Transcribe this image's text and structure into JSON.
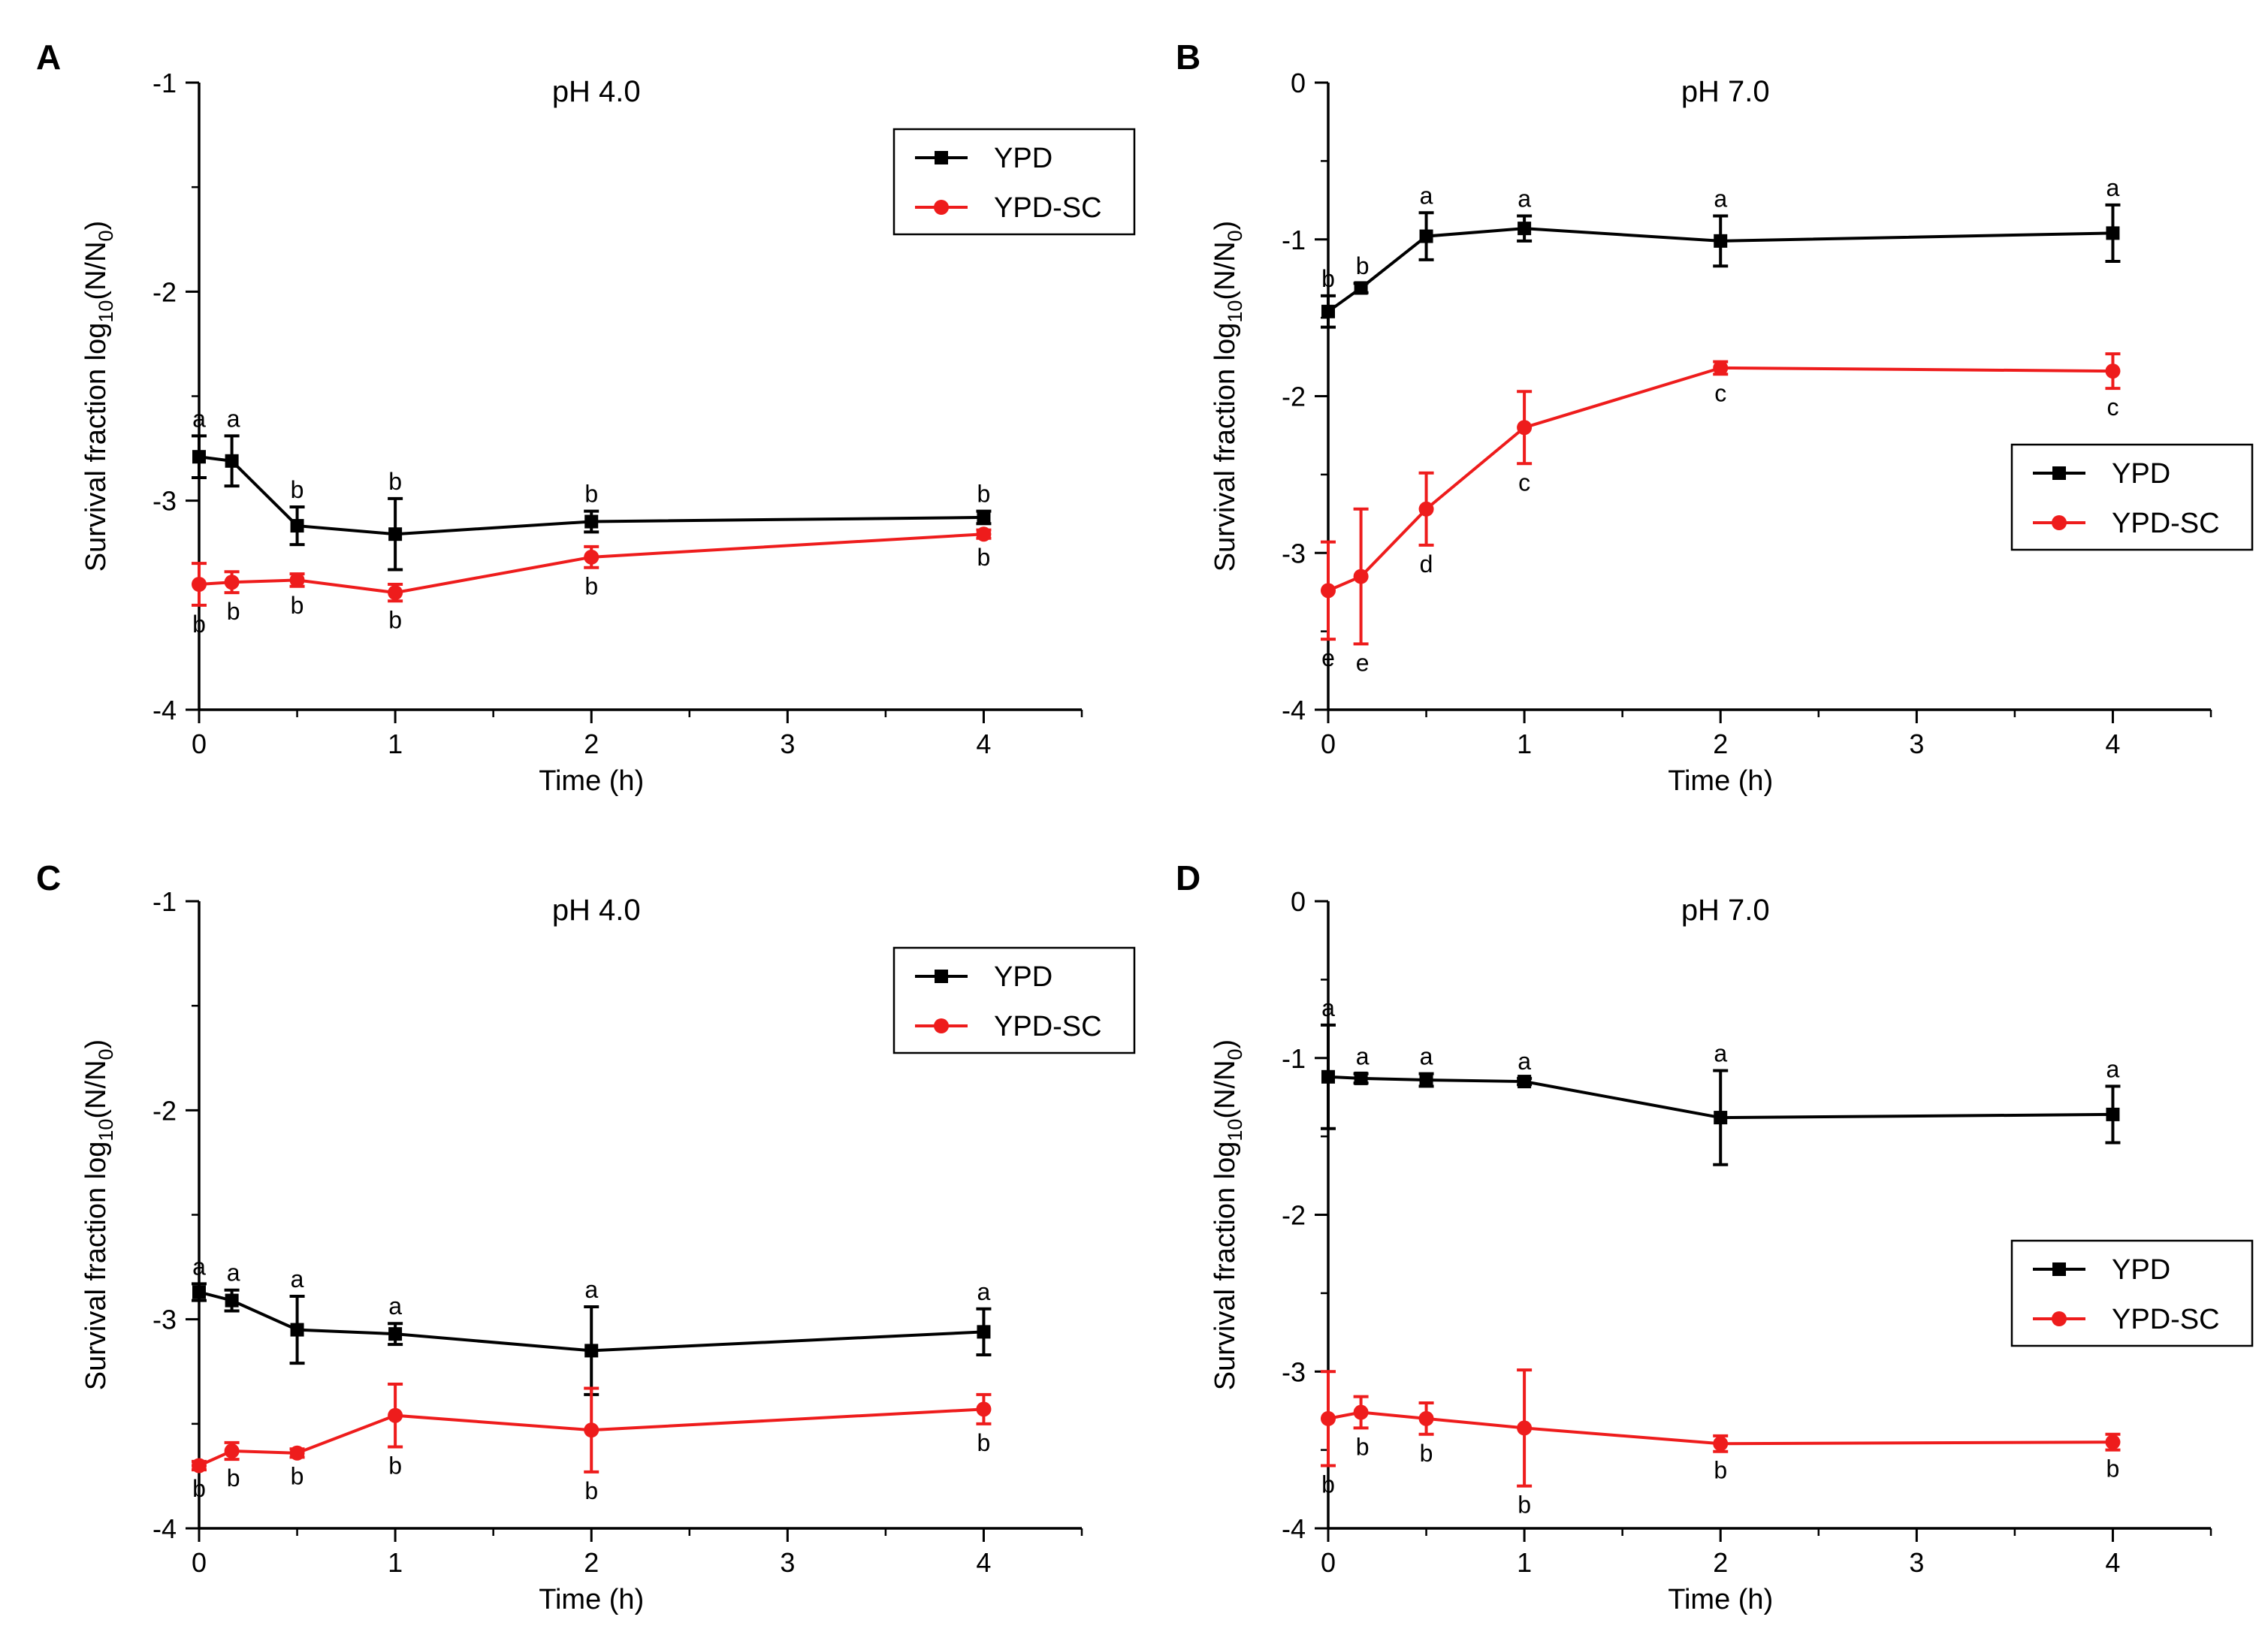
{
  "figure": {
    "x_label": "Time (h)",
    "y_label_main": "Survival fraction log",
    "y_label_sub": "10",
    "y_label_tail": "(N/N",
    "y_label_sub0": "0",
    "y_label_close": ")"
  },
  "colors": {
    "ypd": "#000000",
    "ypd_sc": "#ee1c1c",
    "axis": "#000000"
  },
  "chart_data": [
    {
      "type": "line",
      "panel": "A",
      "title": "pH 4.0",
      "xlabel": "Time (h)",
      "ylabel": "Survival fraction log10(N/N0)",
      "xlim": [
        0,
        4.5
      ],
      "ylim": [
        -4,
        -1
      ],
      "xticks": [
        0,
        1,
        2,
        3,
        4
      ],
      "yticks": [
        -4,
        -3,
        -2,
        -1
      ],
      "legend_position": "top-right",
      "x": [
        0,
        0.167,
        0.5,
        1,
        2,
        4
      ],
      "series": [
        {
          "name": "YPD",
          "marker": "square",
          "color": "#000000",
          "values": [
            -2.79,
            -2.81,
            -3.12,
            -3.16,
            -3.1,
            -3.08
          ],
          "errors": [
            0.1,
            0.12,
            0.09,
            0.17,
            0.05,
            0.03
          ],
          "letters": [
            "a",
            "a",
            "b",
            "b",
            "b",
            "b"
          ],
          "letter_pos": "above"
        },
        {
          "name": "YPD-SC",
          "marker": "circle",
          "color": "#ee1c1c",
          "values": [
            -3.4,
            -3.39,
            -3.38,
            -3.44,
            -3.27,
            -3.16
          ],
          "errors": [
            0.1,
            0.05,
            0.03,
            0.04,
            0.05,
            0.02
          ],
          "letters": [
            "b",
            "b",
            "b",
            "b",
            "b",
            "b"
          ],
          "letter_pos": "below"
        }
      ]
    },
    {
      "type": "line",
      "panel": "B",
      "title": "pH 7.0",
      "xlabel": "Time (h)",
      "ylabel": "Survival fraction log10(N/N0)",
      "xlim": [
        0,
        4.5
      ],
      "ylim": [
        -4,
        0
      ],
      "xticks": [
        0,
        1,
        2,
        3,
        4
      ],
      "yticks": [
        -4,
        -3,
        -2,
        -1,
        0
      ],
      "legend_position": "right",
      "x": [
        0,
        0.167,
        0.5,
        1,
        2,
        4
      ],
      "series": [
        {
          "name": "YPD",
          "marker": "square",
          "color": "#000000",
          "values": [
            -1.46,
            -1.31,
            -0.98,
            -0.93,
            -1.01,
            -0.96
          ],
          "errors": [
            0.1,
            0.03,
            0.15,
            0.08,
            0.16,
            0.18
          ],
          "letters": [
            "b",
            "b",
            "a",
            "a",
            "a",
            "a"
          ],
          "letter_pos": "above"
        },
        {
          "name": "YPD-SC",
          "marker": "circle",
          "color": "#ee1c1c",
          "values": [
            -3.24,
            -3.15,
            -2.72,
            -2.2,
            -1.82,
            -1.84
          ],
          "errors": [
            0.31,
            0.43,
            0.23,
            0.23,
            0.04,
            0.11
          ],
          "letters": [
            "e",
            "e",
            "d",
            "c",
            "c",
            "c"
          ],
          "letter_pos": "below"
        }
      ]
    },
    {
      "type": "line",
      "panel": "C",
      "title": "pH 4.0",
      "xlabel": "Time (h)",
      "ylabel": "Survival fraction log10(N/N0)",
      "xlim": [
        0,
        4.5
      ],
      "ylim": [
        -4,
        -1
      ],
      "xticks": [
        0,
        1,
        2,
        3,
        4
      ],
      "yticks": [
        -4,
        -3,
        -2,
        -1
      ],
      "legend_position": "top-right",
      "x": [
        0,
        0.167,
        0.5,
        1,
        2,
        4
      ],
      "series": [
        {
          "name": "YPD",
          "marker": "square",
          "color": "#000000",
          "values": [
            -2.87,
            -2.91,
            -3.05,
            -3.07,
            -3.15,
            -3.06
          ],
          "errors": [
            0.04,
            0.05,
            0.16,
            0.05,
            0.21,
            0.11
          ],
          "letters": [
            "a",
            "a",
            "a",
            "a",
            "a",
            "a"
          ],
          "letter_pos": "above"
        },
        {
          "name": "YPD-SC",
          "marker": "circle",
          "color": "#ee1c1c",
          "values": [
            -3.7,
            -3.63,
            -3.64,
            -3.46,
            -3.53,
            -3.43
          ],
          "errors": [
            0.02,
            0.04,
            0.02,
            0.15,
            0.2,
            0.07
          ],
          "letters": [
            "b",
            "b",
            "b",
            "b",
            "b",
            "b"
          ],
          "letter_pos": "below"
        }
      ]
    },
    {
      "type": "line",
      "panel": "D",
      "title": "pH 7.0",
      "xlabel": "Time (h)",
      "ylabel": "Survival fraction log10(N/N0)",
      "xlim": [
        0,
        4.5
      ],
      "ylim": [
        -4,
        0
      ],
      "xticks": [
        0,
        1,
        2,
        3,
        4
      ],
      "yticks": [
        -4,
        -3,
        -2,
        -1,
        0
      ],
      "legend_position": "right",
      "x": [
        0,
        0.167,
        0.5,
        1,
        2,
        4
      ],
      "series": [
        {
          "name": "YPD",
          "marker": "square",
          "color": "#000000",
          "values": [
            -1.12,
            -1.13,
            -1.14,
            -1.15,
            -1.38,
            -1.36
          ],
          "errors": [
            0.33,
            0.03,
            0.04,
            0.02,
            0.3,
            0.18
          ],
          "letters": [
            "a",
            "a",
            "a",
            "a",
            "a",
            "a"
          ],
          "letter_pos": "above"
        },
        {
          "name": "YPD-SC",
          "marker": "circle",
          "color": "#ee1c1c",
          "values": [
            -3.3,
            -3.26,
            -3.3,
            -3.36,
            -3.46,
            -3.45
          ],
          "errors": [
            0.3,
            0.1,
            0.1,
            0.37,
            0.05,
            0.05
          ],
          "letters": [
            "b",
            "b",
            "b",
            "b",
            "b",
            "b"
          ],
          "letter_pos": "below"
        }
      ]
    }
  ]
}
